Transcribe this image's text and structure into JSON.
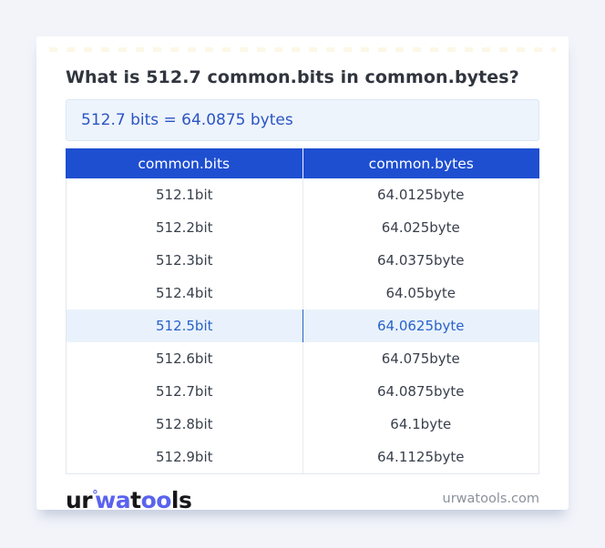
{
  "page": {
    "title": "What is 512.7 common.bits in common.bytes?",
    "result_text": "512.7 bits = 64.0875 bytes",
    "footer_domain": "urwatools.com"
  },
  "logo": {
    "seg1": "ur",
    "ring": "°",
    "seg2": "wa",
    "seg3": "t",
    "seg4": "oo",
    "seg5": "ls"
  },
  "table": {
    "headers": [
      "common.bits",
      "common.bytes"
    ],
    "rows": [
      {
        "bits": "512.1bit",
        "bytes": "64.0125byte",
        "highlight": false
      },
      {
        "bits": "512.2bit",
        "bytes": "64.025byte",
        "highlight": false
      },
      {
        "bits": "512.3bit",
        "bytes": "64.0375byte",
        "highlight": false
      },
      {
        "bits": "512.4bit",
        "bytes": "64.05byte",
        "highlight": false
      },
      {
        "bits": "512.5bit",
        "bytes": "64.0625byte",
        "highlight": true
      },
      {
        "bits": "512.6bit",
        "bytes": "64.075byte",
        "highlight": false
      },
      {
        "bits": "512.7bit",
        "bytes": "64.0875byte",
        "highlight": false
      },
      {
        "bits": "512.8bit",
        "bytes": "64.1byte",
        "highlight": false
      },
      {
        "bits": "512.9bit",
        "bytes": "64.1125byte",
        "highlight": false
      }
    ]
  },
  "colors": {
    "page_background": "#f2f4fa",
    "card_background": "#ffffff",
    "header_blue": "#1e4fd1",
    "result_box_background": "#eef4fc",
    "result_text_blue": "#2a55c3",
    "highlight_row_background": "#e9f2fc",
    "highlight_text_blue": "#2a62c8",
    "logo_blue": "#5a63ee"
  }
}
